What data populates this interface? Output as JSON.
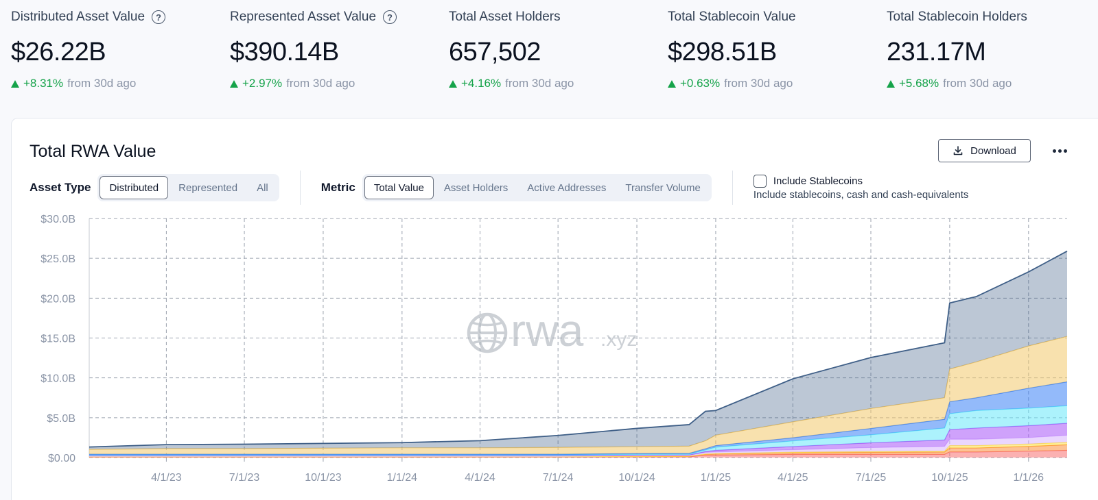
{
  "stats": [
    {
      "label": "Distributed Asset Value",
      "value": "$26.22B",
      "change": "+8.31%",
      "suffix": "from 30d ago",
      "help": true
    },
    {
      "label": "Represented Asset Value",
      "value": "$390.14B",
      "change": "+2.97%",
      "suffix": "from 30d ago",
      "help": true
    },
    {
      "label": "Total Asset Holders",
      "value": "657,502",
      "change": "+4.16%",
      "suffix": "from 30d ago",
      "help": false
    },
    {
      "label": "Total Stablecoin Value",
      "value": "$298.51B",
      "change": "+0.63%",
      "suffix": "from 30d ago",
      "help": false
    },
    {
      "label": "Total Stablecoin Holders",
      "value": "231.17M",
      "change": "+5.68%",
      "suffix": "from 30d ago",
      "help": false
    }
  ],
  "help_glyph": "?",
  "card": {
    "title": "Total RWA Value",
    "download_label": "Download",
    "asset_type_label": "Asset Type",
    "asset_types": [
      "Distributed",
      "Represented",
      "All"
    ],
    "asset_type_selected": "Distributed",
    "metric_label": "Metric",
    "metrics": [
      "Total Value",
      "Asset Holders",
      "Active Addresses",
      "Transfer Volume"
    ],
    "metric_selected": "Total Value",
    "stablecoins_label": "Include Stablecoins",
    "stablecoins_desc": "Include stablecoins, cash and cash-equivalents",
    "stablecoins_checked": false
  },
  "watermark": {
    "main": "rwa",
    "suffix": ".xyz"
  },
  "colors": {
    "positive": "#16a34a",
    "series": [
      "#f87171",
      "#fb923c",
      "#fde047",
      "#d8b4fe",
      "#a855f7",
      "#67e8f9",
      "#3b82f6",
      "#f3c96b",
      "#3f5f87"
    ]
  },
  "chart_data": {
    "type": "area",
    "stacked": true,
    "grid": true,
    "ylim": [
      0,
      30
    ],
    "y_ticks": [
      "$0.00",
      "$5.0B",
      "$10.0B",
      "$15.0B",
      "$20.0B",
      "$25.0B",
      "$30.0B"
    ],
    "x_ticks": [
      "4/1/23",
      "7/1/23",
      "10/1/23",
      "1/1/24",
      "4/1/24",
      "7/1/24",
      "10/1/24",
      "1/1/25",
      "4/1/25",
      "7/1/25",
      "10/1/25",
      "1/1/26"
    ],
    "x": [
      "2023-01-01",
      "2023-04-01",
      "2023-07-01",
      "2023-10-01",
      "2024-01-01",
      "2024-04-01",
      "2024-07-01",
      "2024-10-01",
      "2024-12-01",
      "2024-12-20",
      "2025-01-01",
      "2025-04-01",
      "2025-07-01",
      "2025-09-25",
      "2025-10-01",
      "2025-11-01",
      "2026-01-01",
      "2026-02-15"
    ],
    "series": [
      {
        "values": [
          0.05,
          0.05,
          0.05,
          0.05,
          0.05,
          0.05,
          0.05,
          0.08,
          0.1,
          0.3,
          0.3,
          0.4,
          0.4,
          0.4,
          0.7,
          0.7,
          0.8,
          0.9
        ]
      },
      {
        "values": [
          0.05,
          0.05,
          0.05,
          0.05,
          0.05,
          0.05,
          0.05,
          0.05,
          0.05,
          0.1,
          0.15,
          0.2,
          0.25,
          0.3,
          0.5,
          0.5,
          0.6,
          0.7
        ]
      },
      {
        "values": [
          0.02,
          0.02,
          0.02,
          0.02,
          0.02,
          0.02,
          0.02,
          0.03,
          0.03,
          0.05,
          0.05,
          0.08,
          0.1,
          0.1,
          0.3,
          0.3,
          0.3,
          0.3
        ]
      },
      {
        "values": [
          0.05,
          0.05,
          0.05,
          0.05,
          0.05,
          0.05,
          0.05,
          0.1,
          0.1,
          0.2,
          0.2,
          0.3,
          0.5,
          0.6,
          0.8,
          0.8,
          0.8,
          0.9
        ]
      },
      {
        "values": [
          0.05,
          0.05,
          0.05,
          0.05,
          0.05,
          0.05,
          0.05,
          0.05,
          0.05,
          0.1,
          0.2,
          0.4,
          0.6,
          0.8,
          1.2,
          1.4,
          1.5,
          1.5
        ]
      },
      {
        "values": [
          0.1,
          0.1,
          0.1,
          0.1,
          0.1,
          0.1,
          0.1,
          0.1,
          0.1,
          0.2,
          0.4,
          0.7,
          1.0,
          1.5,
          2.0,
          2.2,
          2.2,
          2.2
        ]
      },
      {
        "values": [
          0.1,
          0.1,
          0.1,
          0.1,
          0.1,
          0.1,
          0.1,
          0.1,
          0.1,
          0.15,
          0.2,
          0.4,
          0.8,
          1.1,
          1.5,
          1.6,
          2.5,
          3.0
        ]
      },
      {
        "values": [
          0.6,
          0.7,
          0.7,
          0.75,
          0.8,
          0.8,
          0.85,
          0.85,
          0.9,
          1.0,
          1.3,
          2.0,
          2.5,
          2.7,
          4.1,
          4.5,
          5.3,
          5.7
        ]
      },
      {
        "values": [
          0.3,
          0.5,
          0.55,
          0.6,
          0.65,
          0.9,
          1.5,
          2.3,
          2.7,
          3.7,
          3.1,
          5.4,
          6.4,
          6.9,
          8.3,
          8.2,
          9.3,
          10.7
        ]
      }
    ]
  }
}
